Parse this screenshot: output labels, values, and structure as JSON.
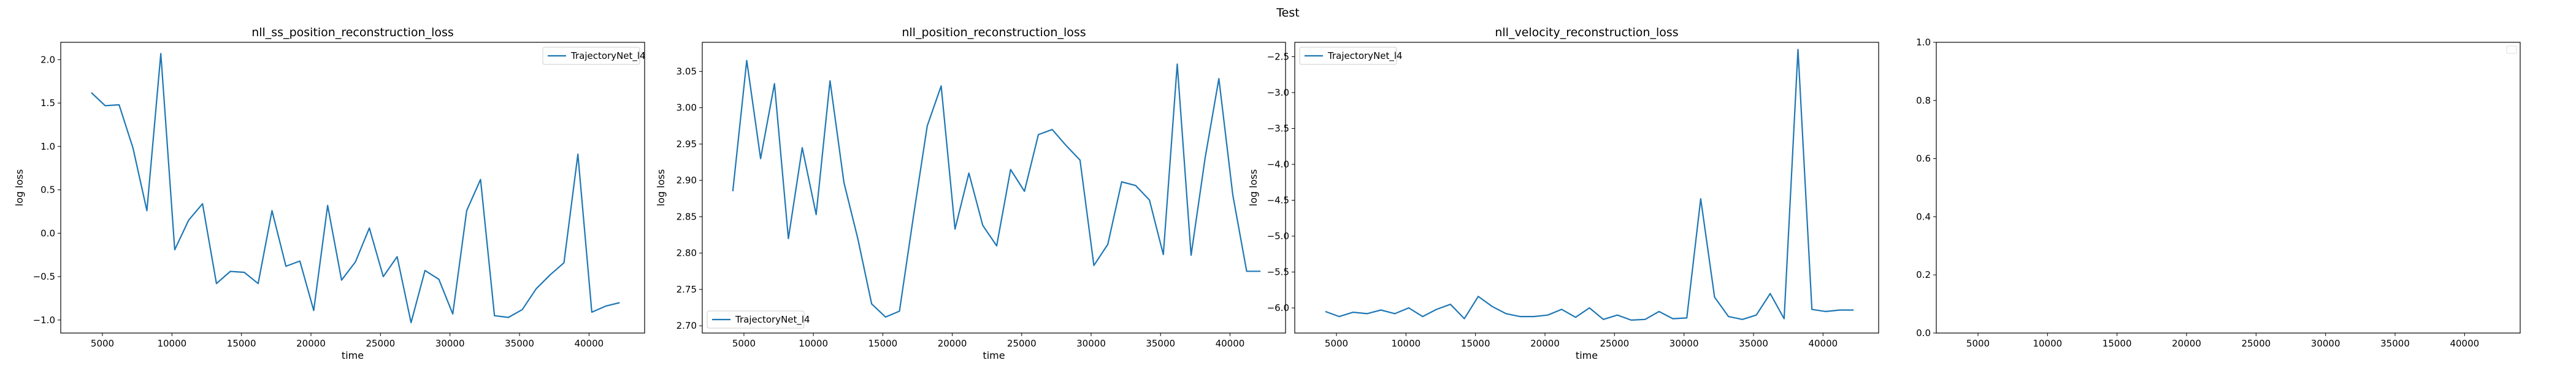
{
  "figure": {
    "title": "Test"
  },
  "chart_data": [
    {
      "type": "line",
      "title": "nll_ss_position_reconstruction_loss",
      "xlabel": "time",
      "ylabel": "log loss",
      "xlim": [
        2000,
        44000
      ],
      "ylim": [
        -1.15,
        2.2
      ],
      "xticks": [
        5000,
        10000,
        15000,
        20000,
        25000,
        30000,
        35000,
        40000
      ],
      "xtick_labels": [
        "5000",
        "10000",
        "15000",
        "20000",
        "25000",
        "30000",
        "35000",
        "40000"
      ],
      "yticks": [
        -1.0,
        -0.5,
        0.0,
        0.5,
        1.0,
        1.5,
        2.0
      ],
      "ytick_labels": [
        "−1.0",
        "−0.5",
        "0.0",
        "0.5",
        "1.0",
        "1.5",
        "2.0"
      ],
      "legend": {
        "position": "upper right",
        "entries": [
          "TrajectoryNet_l4"
        ]
      },
      "series": [
        {
          "name": "TrajectoryNet_l4",
          "color": "#1f77b4",
          "x": [
            4200,
            5200,
            6200,
            7200,
            8200,
            9200,
            10200,
            11200,
            12200,
            13200,
            14200,
            15200,
            16200,
            17200,
            18200,
            19200,
            20200,
            21200,
            22200,
            23200,
            24200,
            25200,
            26200,
            27200,
            28200,
            29200,
            30200,
            31200,
            32200,
            33200,
            34200,
            35200,
            36200,
            37200,
            38200,
            39200,
            40200,
            41200,
            42200
          ],
          "y": [
            1.62,
            1.47,
            1.48,
            0.98,
            0.26,
            2.07,
            -0.19,
            0.15,
            0.34,
            -0.58,
            -0.44,
            -0.45,
            -0.58,
            0.26,
            -0.38,
            -0.32,
            -0.89,
            0.32,
            -0.54,
            -0.33,
            0.06,
            -0.5,
            -0.27,
            -1.03,
            -0.43,
            -0.53,
            -0.93,
            0.26,
            0.62,
            -0.95,
            -0.97,
            -0.88,
            -0.64,
            -0.48,
            -0.34,
            0.91,
            -0.91,
            -0.84,
            -0.8
          ]
        }
      ]
    },
    {
      "type": "line",
      "title": "nll_position_reconstruction_loss",
      "xlabel": "time",
      "ylabel": "log loss",
      "xlim": [
        2000,
        44000
      ],
      "ylim": [
        2.69,
        3.09
      ],
      "xticks": [
        5000,
        10000,
        15000,
        20000,
        25000,
        30000,
        35000,
        40000
      ],
      "xtick_labels": [
        "5000",
        "10000",
        "15000",
        "20000",
        "25000",
        "30000",
        "35000",
        "40000"
      ],
      "yticks": [
        2.7,
        2.75,
        2.8,
        2.85,
        2.9,
        2.95,
        3.0,
        3.05
      ],
      "ytick_labels": [
        "2.70",
        "2.75",
        "2.80",
        "2.85",
        "2.90",
        "2.95",
        "3.00",
        "3.05"
      ],
      "legend": {
        "position": "lower left",
        "entries": [
          "TrajectoryNet_l4"
        ]
      },
      "series": [
        {
          "name": "TrajectoryNet_l4",
          "color": "#1f77b4",
          "x": [
            4200,
            5200,
            6200,
            7200,
            8200,
            9200,
            10200,
            11200,
            12200,
            13200,
            14200,
            15200,
            16200,
            17200,
            18200,
            19200,
            20200,
            21200,
            22200,
            23200,
            24200,
            25200,
            26200,
            27200,
            28200,
            29200,
            30200,
            31200,
            32200,
            33200,
            34200,
            35200,
            36200,
            37200,
            38200,
            39200,
            40200,
            41200,
            42200
          ],
          "y": [
            2.885,
            3.065,
            2.93,
            3.033,
            2.82,
            2.945,
            2.853,
            3.037,
            2.897,
            2.82,
            2.73,
            2.712,
            2.72,
            2.85,
            2.975,
            3.03,
            2.833,
            2.91,
            2.838,
            2.81,
            2.915,
            2.885,
            2.963,
            2.97,
            2.948,
            2.928,
            2.783,
            2.812,
            2.898,
            2.893,
            2.873,
            2.798,
            3.06,
            2.797,
            2.93,
            3.04,
            2.88,
            2.775,
            2.775
          ]
        }
      ]
    },
    {
      "type": "line",
      "title": "nll_velocity_reconstruction_loss",
      "xlabel": "time",
      "ylabel": "log loss",
      "xlim": [
        2000,
        44000
      ],
      "ylim": [
        -6.35,
        -2.3
      ],
      "xticks": [
        5000,
        10000,
        15000,
        20000,
        25000,
        30000,
        35000,
        40000
      ],
      "xtick_labels": [
        "5000",
        "10000",
        "15000",
        "20000",
        "25000",
        "30000",
        "35000",
        "40000"
      ],
      "yticks": [
        -6.0,
        -5.5,
        -5.0,
        -4.5,
        -4.0,
        -3.5,
        -3.0,
        -2.5
      ],
      "ytick_labels": [
        "−6.0",
        "−5.5",
        "−5.0",
        "−4.5",
        "−4.0",
        "−3.5",
        "−3.0",
        "−2.5"
      ],
      "legend": {
        "position": "upper left",
        "entries": [
          "TrajectoryNet_l4"
        ]
      },
      "series": [
        {
          "name": "TrajectoryNet_l4",
          "color": "#1f77b4",
          "x": [
            4200,
            5200,
            6200,
            7200,
            8200,
            9200,
            10200,
            11200,
            12200,
            13200,
            14200,
            15200,
            16200,
            17200,
            18200,
            19200,
            20200,
            21200,
            22200,
            23200,
            24200,
            25200,
            26200,
            27200,
            28200,
            29200,
            30200,
            31200,
            32200,
            33200,
            34200,
            35200,
            36200,
            37200,
            38200,
            39200,
            40200,
            41200,
            42200
          ],
          "y": [
            -6.05,
            -6.12,
            -6.06,
            -6.08,
            -6.03,
            -6.08,
            -6.0,
            -6.12,
            -6.02,
            -5.95,
            -6.15,
            -5.84,
            -5.98,
            -6.08,
            -6.12,
            -6.12,
            -6.1,
            -6.02,
            -6.13,
            -6.0,
            -6.16,
            -6.1,
            -6.17,
            -6.16,
            -6.05,
            -6.15,
            -6.14,
            -4.48,
            -5.85,
            -6.12,
            -6.16,
            -6.1,
            -5.8,
            -6.15,
            -2.4,
            -6.02,
            -6.05,
            -6.03,
            -6.03
          ]
        }
      ]
    },
    {
      "type": "line",
      "title": "",
      "xlabel": "",
      "ylabel": "",
      "xlim": [
        2000,
        44000
      ],
      "ylim": [
        0.0,
        1.0
      ],
      "xticks": [
        5000,
        10000,
        15000,
        20000,
        25000,
        30000,
        35000,
        40000
      ],
      "xtick_labels": [
        "5000",
        "10000",
        "15000",
        "20000",
        "25000",
        "30000",
        "35000",
        "40000"
      ],
      "yticks": [
        0.0,
        0.2,
        0.4,
        0.6,
        0.8,
        1.0
      ],
      "ytick_labels": [
        "0.0",
        "0.2",
        "0.4",
        "0.6",
        "0.8",
        "1.0"
      ],
      "legend": {
        "position": "upper right",
        "entries": []
      },
      "series": []
    }
  ]
}
